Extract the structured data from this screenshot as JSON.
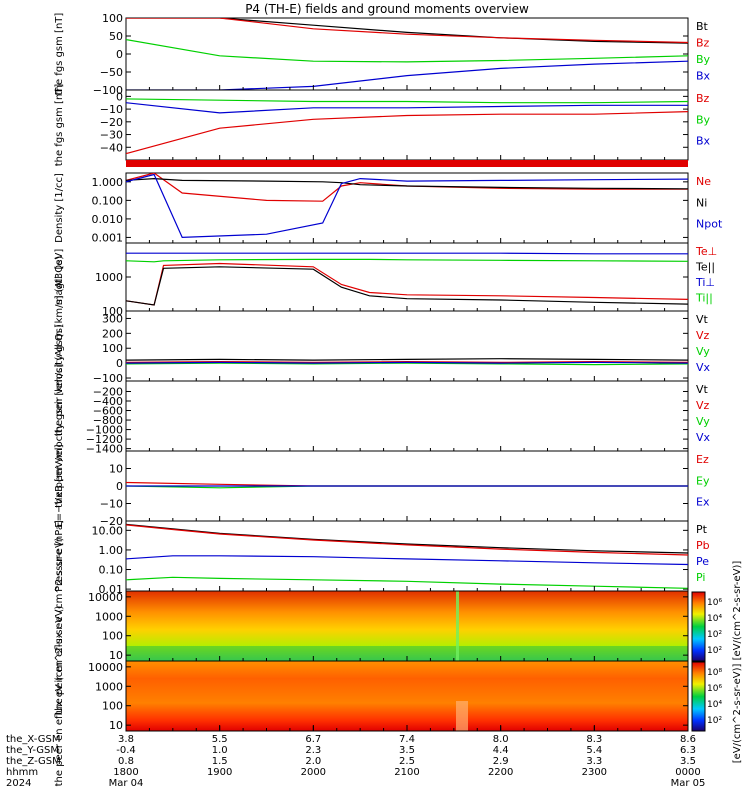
{
  "title": "P4 (TH-E) fields and ground moments overview",
  "colors": {
    "black": "#000000",
    "red": "#e00000",
    "green": "#00d000",
    "blue": "#0000d0",
    "axis": "#000000"
  },
  "x_axis": {
    "time_ticks": [
      "1800",
      "1900",
      "2000",
      "2100",
      "2200",
      "2300",
      "0000"
    ],
    "date_labels": [
      "Mar 04",
      "",
      "",
      "",
      "",
      "",
      "Mar 05"
    ],
    "row_labels": [
      "the_X-GSM",
      "the_Y-GSM",
      "the_Z-GSM",
      "hhmm",
      "2024"
    ],
    "x_gsm": [
      "3.8",
      "5.5",
      "6.7",
      "7.4",
      "8.0",
      "8.3",
      "8.6"
    ],
    "y_gsm": [
      "-0.4",
      "1.0",
      "2.3",
      "3.5",
      "4.4",
      "5.4",
      "6.3"
    ],
    "z_gsm": [
      "0.8",
      "1.5",
      "2.0",
      "2.5",
      "2.9",
      "3.3",
      "3.5"
    ]
  },
  "colorbar": {
    "label": "[eV/(cm^2-s-sr-eV)] [eV/(cm^2-s-sr-eV)]",
    "ticks_top": [
      "10⁶",
      "10⁴",
      "10²",
      "10²"
    ],
    "ticks_bottom": [
      "10⁸",
      "10⁶",
      "10⁴",
      "10²"
    ]
  },
  "chart_data": [
    {
      "type": "line",
      "ylabel": "the fgs gsm [nT]",
      "ylim": [
        -100,
        100
      ],
      "yticks": [
        "100",
        "50",
        "0",
        "−50",
        "−100"
      ],
      "series": [
        {
          "name": "Bt",
          "color": "black"
        },
        {
          "name": "Bz",
          "color": "red"
        },
        {
          "name": "By",
          "color": "green"
        },
        {
          "name": "Bx",
          "color": "blue"
        }
      ],
      "x": [
        0,
        1,
        2,
        3,
        4,
        5,
        6
      ],
      "values": {
        "Bt": [
          180,
          120,
          80,
          60,
          45,
          35,
          30
        ],
        "Bz": [
          150,
          100,
          70,
          55,
          45,
          38,
          32
        ],
        "By": [
          40,
          -5,
          -20,
          -22,
          -18,
          -12,
          -5
        ],
        "Bx": [
          -200,
          -140,
          -90,
          -60,
          -40,
          -28,
          -20
        ]
      }
    },
    {
      "type": "line",
      "ylabel": "the fgs gsm [nT]",
      "ylim": [
        -50,
        5
      ],
      "yticks": [
        "0",
        "−10",
        "−20",
        "−30",
        "−40"
      ],
      "series": [
        {
          "name": "Bz",
          "color": "red"
        },
        {
          "name": "By",
          "color": "green"
        },
        {
          "name": "Bx",
          "color": "blue"
        }
      ],
      "x": [
        0,
        1,
        2,
        3,
        4,
        5,
        6
      ],
      "values": {
        "Bz": [
          -45,
          -25,
          -18,
          -15,
          -14,
          -14,
          -12
        ],
        "By": [
          -2,
          -3,
          -4,
          -4,
          -5,
          -5,
          -4
        ],
        "Bx": [
          -5,
          -13,
          -9,
          -9,
          -8,
          -7,
          -7
        ]
      }
    },
    {
      "type": "line",
      "ylabel": "Density [1/cc]",
      "yscale": "log",
      "ylim": [
        0.0005,
        3
      ],
      "yticks": [
        "1.000",
        "0.100",
        "0.010",
        "0.001"
      ],
      "series": [
        {
          "name": "Ne",
          "color": "red"
        },
        {
          "name": "Ni",
          "color": "black"
        },
        {
          "name": "Npot",
          "color": "blue"
        }
      ],
      "x": [
        0,
        0.3,
        0.6,
        1.5,
        2.1,
        2.3,
        2.5,
        3,
        4,
        5,
        6
      ],
      "values": {
        "Ne": [
          1.2,
          3,
          0.25,
          0.1,
          0.09,
          0.6,
          0.9,
          0.6,
          0.45,
          0.4,
          0.4
        ],
        "Ni": [
          1.2,
          1.5,
          1.2,
          1.1,
          1.0,
          0.9,
          0.7,
          0.6,
          0.5,
          0.45,
          0.42
        ],
        "Npot": [
          1.0,
          2.5,
          0.001,
          0.0015,
          0.006,
          0.8,
          1.5,
          1.1,
          1.2,
          1.3,
          1.4
        ]
      }
    },
    {
      "type": "line",
      "ylabel": "magt3 [eV]",
      "yscale": "log",
      "ylim": [
        100,
        10000
      ],
      "yticks": [
        "1000",
        "100"
      ],
      "series": [
        {
          "name": "Te⊥",
          "color": "red"
        },
        {
          "name": "Te||",
          "color": "black"
        },
        {
          "name": "Ti⊥",
          "color": "blue"
        },
        {
          "name": "Ti||",
          "color": "green"
        }
      ],
      "x": [
        0,
        0.3,
        0.4,
        1,
        2,
        2.3,
        2.6,
        3,
        4,
        5,
        6
      ],
      "values": {
        "Te⊥": [
          200,
          150,
          2200,
          2500,
          2000,
          600,
          350,
          300,
          280,
          250,
          220
        ],
        "Te||": [
          200,
          150,
          1800,
          2000,
          1700,
          500,
          280,
          230,
          210,
          180,
          160
        ],
        "Ti⊥": [
          5000,
          5000,
          5000,
          5000,
          5000,
          5000,
          5000,
          5000,
          5000,
          4800,
          4800
        ],
        "Ti||": [
          3000,
          2800,
          3000,
          3200,
          3300,
          3300,
          3300,
          3200,
          3100,
          3000,
          2900
        ]
      }
    },
    {
      "type": "line",
      "ylabel": "the peir velocity gsm [km/s] (All Qs)",
      "ylim": [
        -120,
        350
      ],
      "yticks": [
        "300",
        "200",
        "100",
        "0",
        "−100"
      ],
      "series": [
        {
          "name": "Vt",
          "color": "black"
        },
        {
          "name": "Vz",
          "color": "red"
        },
        {
          "name": "Vy",
          "color": "green"
        },
        {
          "name": "Vx",
          "color": "blue"
        }
      ],
      "x": [
        0,
        1,
        2,
        3,
        4,
        5,
        6
      ],
      "values": {
        "Vt": [
          20,
          25,
          20,
          25,
          30,
          25,
          20
        ],
        "Vz": [
          5,
          10,
          5,
          10,
          5,
          10,
          5
        ],
        "Vy": [
          -5,
          0,
          -5,
          0,
          -5,
          -10,
          -5
        ],
        "Vx": [
          0,
          5,
          0,
          5,
          0,
          5,
          0
        ]
      }
    },
    {
      "type": "line",
      "ylabel": "the peer velocity gsm [km/s] (All Qs)",
      "ylim": [
        -1450,
        20
      ],
      "yticks": [
        "−200",
        "−400",
        "−600",
        "−800",
        "−1000",
        "−1200",
        "−1400"
      ],
      "series": [
        {
          "name": "Vt",
          "color": "black"
        },
        {
          "name": "Vz",
          "color": "red"
        },
        {
          "name": "Vy",
          "color": "green"
        },
        {
          "name": "Vx",
          "color": "blue"
        }
      ]
    },
    {
      "type": "line",
      "ylabel": "E=−VxB [mV/m]",
      "ylim": [
        -20,
        20
      ],
      "yticks": [
        "10",
        "0",
        "−10",
        "−20"
      ],
      "series": [
        {
          "name": "Ez",
          "color": "red"
        },
        {
          "name": "Ey",
          "color": "green"
        },
        {
          "name": "Ex",
          "color": "blue"
        }
      ],
      "x": [
        0,
        1,
        2,
        3,
        4,
        5,
        6
      ],
      "values": {
        "Ez": [
          2,
          1,
          0,
          0,
          0,
          0,
          0
        ],
        "Ey": [
          0,
          -1,
          0,
          0,
          0,
          0,
          0
        ],
        "Ex": [
          0,
          0,
          0,
          0,
          0,
          0,
          0
        ]
      }
    },
    {
      "type": "line",
      "ylabel": "Pressure [nPa]",
      "yscale": "log",
      "ylim": [
        0.008,
        30
      ],
      "yticks": [
        "10.00",
        "1.00",
        "0.10",
        "0.01"
      ],
      "series": [
        {
          "name": "Pt",
          "color": "black"
        },
        {
          "name": "Pb",
          "color": "red"
        },
        {
          "name": "Pe",
          "color": "blue"
        },
        {
          "name": "Pi",
          "color": "green"
        }
      ],
      "x": [
        0,
        0.5,
        1,
        2,
        3,
        4,
        5,
        6
      ],
      "values": {
        "Pt": [
          20,
          12,
          7,
          3.5,
          2,
          1.3,
          0.9,
          0.7
        ],
        "Pb": [
          19,
          11,
          6.5,
          3.2,
          1.8,
          1.1,
          0.75,
          0.55
        ],
        "Pe": [
          0.35,
          0.5,
          0.5,
          0.45,
          0.35,
          0.28,
          0.22,
          0.18
        ],
        "Pi": [
          0.03,
          0.04,
          0.035,
          0.03,
          0.025,
          0.018,
          0.014,
          0.011
        ]
      }
    },
    {
      "type": "heatmap",
      "ylabel": "the peir en eflux eV (cm^2-s-sr-eV)",
      "yscale": "log",
      "ylim": [
        5,
        20000
      ],
      "yticks": [
        "10000",
        "1000",
        "100",
        "10"
      ]
    },
    {
      "type": "heatmap",
      "ylabel": "the peer en eflux eV (cm^2-s-sr-eV)",
      "yscale": "log",
      "ylim": [
        5,
        20000
      ],
      "yticks": [
        "10000",
        "1000",
        "100",
        "10"
      ]
    }
  ]
}
